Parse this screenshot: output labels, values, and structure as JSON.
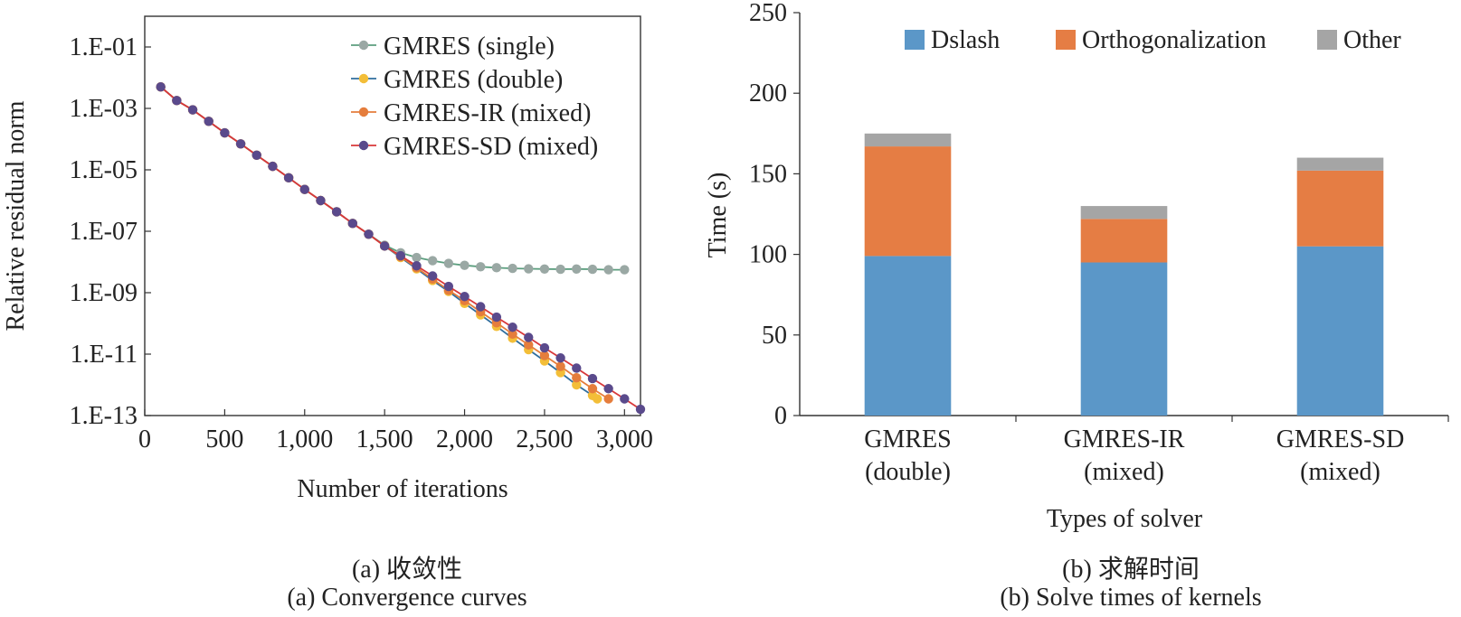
{
  "chart_data": [
    {
      "type": "line",
      "xlabel": "Number of iterations",
      "ylabel": "Relative residual norm",
      "xlim": [
        0,
        3100
      ],
      "ylim": [
        1e-13,
        1
      ],
      "yscale": "log",
      "x_ticks": [
        "0",
        "500",
        "1,000",
        "1,500",
        "2,000",
        "2,500",
        "3,000"
      ],
      "y_ticks": [
        "1.E-13",
        "1.E-11",
        "1.E-09",
        "1.E-07",
        "1.E-05",
        "1.E-03",
        "1.E-01"
      ],
      "grid": false,
      "legend_position": "top-right",
      "series": [
        {
          "name": "GMRES (single)",
          "color": "#5b9e7e",
          "marker_color": "#9aa8a4",
          "x": [
            100,
            200,
            300,
            400,
            500,
            600,
            700,
            800,
            900,
            1000,
            1100,
            1200,
            1300,
            1400,
            1500,
            1600,
            1700,
            1800,
            1900,
            2000,
            2100,
            2200,
            2300,
            2400,
            2500,
            2600,
            2700,
            2800,
            2900,
            3000
          ],
          "y": [
            0.005,
            0.0018,
            0.0009,
            0.00038,
            0.00016,
            7e-05,
            3e-05,
            1.3e-05,
            5.5e-06,
            2.3e-06,
            1e-06,
            4.3e-07,
            1.8e-07,
            8e-08,
            3.5e-08,
            2e-08,
            1.4e-08,
            1.1e-08,
            9e-09,
            7.8e-09,
            7e-09,
            6.5e-09,
            6.2e-09,
            6e-09,
            5.9e-09,
            5.8e-09,
            5.9e-09,
            5.8e-09,
            5.6e-09,
            5.6e-09
          ]
        },
        {
          "name": "GMRES (double)",
          "color": "#2f6e9e",
          "marker_color": "#f3be38",
          "x": [
            100,
            200,
            300,
            400,
            500,
            600,
            700,
            800,
            900,
            1000,
            1100,
            1200,
            1300,
            1400,
            1500,
            1600,
            1700,
            1800,
            1900,
            2000,
            2100,
            2200,
            2300,
            2400,
            2500,
            2600,
            2700,
            2800,
            2830
          ],
          "y": [
            0.005,
            0.0018,
            0.0009,
            0.00038,
            0.00016,
            7e-05,
            3e-05,
            1.3e-05,
            5.5e-06,
            2.3e-06,
            1e-06,
            4.3e-07,
            1.8e-07,
            8e-08,
            3.3e-08,
            1.4e-08,
            6e-09,
            2.5e-09,
            1.1e-09,
            4.5e-10,
            1.9e-10,
            8e-11,
            3.3e-11,
            1.4e-11,
            6e-12,
            2.5e-12,
            1e-12,
            4.5e-13,
            3.5e-13
          ]
        },
        {
          "name": "GMRES-IR (mixed)",
          "color": "#e57d3c",
          "marker_color": "#e57d3c",
          "x": [
            100,
            200,
            300,
            400,
            500,
            600,
            700,
            800,
            900,
            1000,
            1100,
            1200,
            1300,
            1400,
            1500,
            1600,
            1700,
            1800,
            1900,
            2000,
            2100,
            2200,
            2300,
            2400,
            2500,
            2600,
            2700,
            2800,
            2900
          ],
          "y": [
            0.005,
            0.0018,
            0.0009,
            0.00038,
            0.00016,
            7e-05,
            3e-05,
            1.3e-05,
            5.5e-06,
            2.3e-06,
            1e-06,
            4.3e-07,
            1.8e-07,
            8e-08,
            3.3e-08,
            1.5e-08,
            6.5e-09,
            2.8e-09,
            1.2e-09,
            5.5e-10,
            2.4e-10,
            1.05e-10,
            4.5e-11,
            2e-11,
            9e-12,
            4e-12,
            1.7e-12,
            7.5e-13,
            3.5e-13
          ]
        },
        {
          "name": "GMRES-SD (mixed)",
          "color": "#d8383a",
          "marker_color": "#5a4a8c",
          "x": [
            100,
            200,
            300,
            400,
            500,
            600,
            700,
            800,
            900,
            1000,
            1100,
            1200,
            1300,
            1400,
            1500,
            1600,
            1700,
            1800,
            1900,
            2000,
            2100,
            2200,
            2300,
            2400,
            2500,
            2600,
            2700,
            2800,
            2900,
            3000,
            3100
          ],
          "y": [
            0.005,
            0.0018,
            0.0009,
            0.00038,
            0.00016,
            7e-05,
            3e-05,
            1.3e-05,
            5.5e-06,
            2.3e-06,
            1e-06,
            4.3e-07,
            1.8e-07,
            8e-08,
            3.3e-08,
            1.6e-08,
            7.5e-09,
            3.5e-09,
            1.6e-09,
            7.5e-10,
            3.5e-10,
            1.6e-10,
            7.5e-11,
            3.5e-11,
            1.6e-11,
            7.5e-12,
            3.5e-12,
            1.6e-12,
            7.5e-13,
            3.5e-13,
            1.6e-13
          ]
        }
      ]
    },
    {
      "type": "bar",
      "stacked": true,
      "xlabel": "Types of solver",
      "ylabel": "Time (s)",
      "ylim": [
        0,
        250
      ],
      "y_ticks": [
        "0",
        "50",
        "100",
        "150",
        "200",
        "250"
      ],
      "grid": false,
      "legend_position": "top",
      "categories": [
        [
          "GMRES",
          "(double)"
        ],
        [
          "GMRES-IR",
          "(mixed)"
        ],
        [
          "GMRES-SD",
          "(mixed)"
        ]
      ],
      "series": [
        {
          "name": "Dslash",
          "color": "#5b97c8",
          "values": [
            99,
            95,
            105
          ]
        },
        {
          "name": "Orthogonalization",
          "color": "#e57d44",
          "values": [
            68,
            27,
            47
          ]
        },
        {
          "name": "Other",
          "color": "#a5a5a5",
          "values": [
            8,
            8,
            8
          ]
        }
      ]
    }
  ],
  "captions": {
    "left_cn": "(a) 收敛性",
    "left_en": "(a) Convergence curves",
    "right_cn": "(b) 求解时间",
    "right_en": "(b) Solve times of kernels"
  }
}
